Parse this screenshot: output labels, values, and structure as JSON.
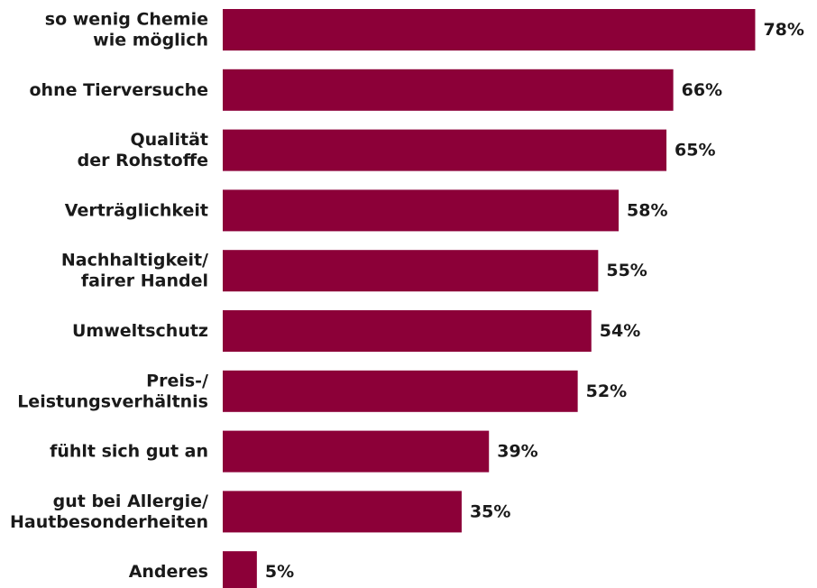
{
  "chart_data": {
    "type": "bar",
    "orientation": "horizontal",
    "title": "",
    "xlabel": "",
    "ylabel": "",
    "categories": [
      [
        "so wenig Chemie",
        "wie möglich"
      ],
      [
        "ohne Tierversuche"
      ],
      [
        "Qualität",
        "der Rohstoffe"
      ],
      [
        "Verträglichkeit"
      ],
      [
        "Nachhaltigkeit/",
        "fairer Handel"
      ],
      [
        "Umweltschutz"
      ],
      [
        "Preis-/",
        "Leistungsverhältnis"
      ],
      [
        "fühlt sich gut an"
      ],
      [
        "gut bei Allergie/",
        "Hautbesonderheiten"
      ],
      [
        "Anderes"
      ]
    ],
    "values": [
      78,
      66,
      65,
      58,
      55,
      54,
      52,
      39,
      35,
      5
    ],
    "value_labels": [
      "78%",
      "66%",
      "65%",
      "58%",
      "55%",
      "54%",
      "52%",
      "39%",
      "35%",
      "5%"
    ],
    "unit": "%",
    "grid": false,
    "legend": "none",
    "bar_color": "#8c0038"
  }
}
